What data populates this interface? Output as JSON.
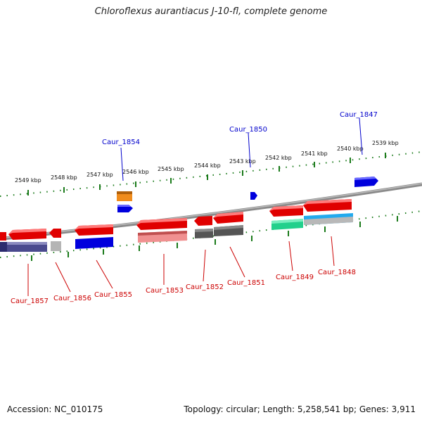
{
  "title": "Chloroflexus aurantiacus J-10-fl, complete genome",
  "footer": {
    "accession": "Accession: NC_010175",
    "summary": "Topology: circular; Length: 5,258,541 bp; Genes: 3,911"
  },
  "colors": {
    "backbone": "#888888",
    "tick": "#1a7a1a",
    "label_top": "#0000cc",
    "label_bottom": "#cc0000"
  },
  "scale_labels": [
    "2549 kbp",
    "2548 kbp",
    "2547 kbp",
    "2546 kbp",
    "2545 kbp",
    "2544 kbp",
    "2543 kbp",
    "2542 kbp",
    "2541 kbp",
    "2540 kbp",
    "2539 kbp"
  ],
  "gene_labels_top": [
    "Caur_1854",
    "Caur_1850",
    "Caur_1847"
  ],
  "gene_labels_bottom": [
    "Caur_1857",
    "Caur_1856",
    "Caur_1855",
    "Caur_1853",
    "Caur_1852",
    "Caur_1851",
    "Caur_1849",
    "Caur_1848"
  ]
}
